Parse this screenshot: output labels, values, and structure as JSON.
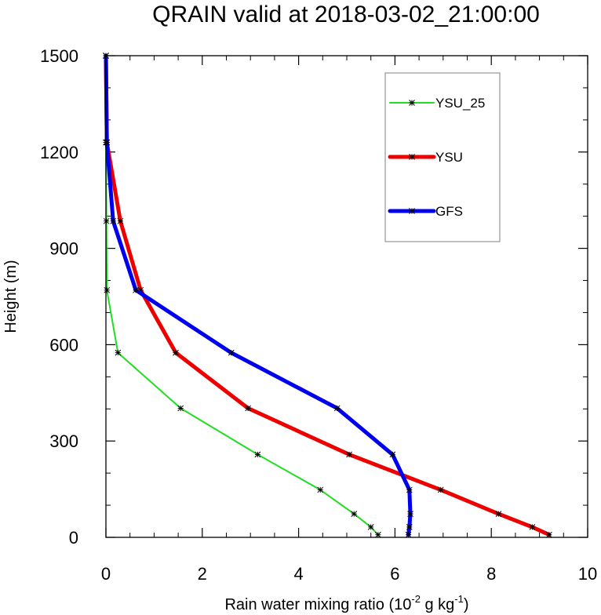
{
  "chart_data": {
    "type": "line",
    "title": "QRAIN valid at 2018-03-02_21:00:00",
    "xlabel": "Rain water mixing ratio",
    "xlabel_units": {
      "base": "(10",
      "exp1": "-2",
      "mid": " g kg",
      "exp2": "-1",
      "end": ")"
    },
    "ylabel": "Height (m)",
    "xlim": [
      0,
      10
    ],
    "ylim": [
      0,
      1500
    ],
    "xticks": [
      "0",
      "2",
      "4",
      "6",
      "8",
      "10"
    ],
    "yticks": [
      "0",
      "300",
      "600",
      "900",
      "1200",
      "1500"
    ],
    "grid": false,
    "legend_position": "top-right",
    "series": [
      {
        "name": "YSU_25",
        "color": "#22dd22",
        "points": [
          [
            5.65,
            8
          ],
          [
            5.5,
            32
          ],
          [
            5.15,
            73
          ],
          [
            4.45,
            148
          ],
          [
            3.15,
            258
          ],
          [
            1.55,
            402
          ],
          [
            0.25,
            575
          ],
          [
            0.02,
            770
          ],
          [
            0.01,
            985
          ],
          [
            0.0,
            1230
          ],
          [
            0.0,
            1500
          ]
        ]
      },
      {
        "name": "YSU",
        "color": "#ee0000",
        "points": [
          [
            9.2,
            8
          ],
          [
            8.85,
            32
          ],
          [
            8.15,
            73
          ],
          [
            6.95,
            148
          ],
          [
            5.05,
            258
          ],
          [
            2.95,
            402
          ],
          [
            1.45,
            575
          ],
          [
            0.72,
            770
          ],
          [
            0.3,
            985
          ],
          [
            0.02,
            1230
          ],
          [
            0.0,
            1500
          ]
        ]
      },
      {
        "name": "GFS",
        "color": "#0000ee",
        "points": [
          [
            6.28,
            8
          ],
          [
            6.3,
            32
          ],
          [
            6.32,
            73
          ],
          [
            6.3,
            148
          ],
          [
            5.95,
            258
          ],
          [
            4.8,
            402
          ],
          [
            2.6,
            575
          ],
          [
            0.62,
            770
          ],
          [
            0.15,
            985
          ],
          [
            0.02,
            1230
          ],
          [
            0.0,
            1500
          ]
        ]
      }
    ]
  }
}
